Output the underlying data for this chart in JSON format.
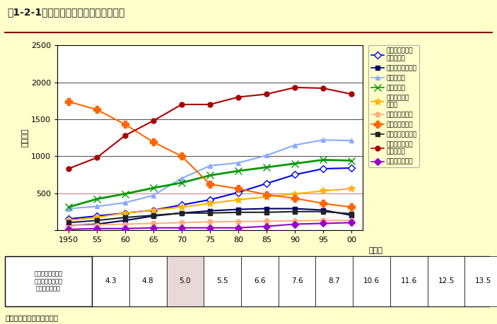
{
  "title": "第1-2-1図　職業分類別就業者数の推移",
  "ylabel": "（万人）",
  "xlabel_suffix": "（年）",
  "background_color": "#FFFFCC",
  "plot_bg_color": "#FFFFFF",
  "years": [
    1950,
    1955,
    1960,
    1965,
    1970,
    1975,
    1980,
    1985,
    1990,
    1995,
    2000
  ],
  "series": [
    {
      "name": "専門的・技術的\n職業従事者",
      "color": "#0000EE",
      "marker": "D",
      "marker_face": "white",
      "linewidth": 1.5,
      "values": [
        150,
        190,
        230,
        270,
        340,
        410,
        510,
        630,
        750,
        830,
        840
      ]
    },
    {
      "name": "管理的職業従事者",
      "color": "#000066",
      "marker": "s",
      "marker_face": "#000066",
      "linewidth": 1.5,
      "values": [
        60,
        80,
        130,
        190,
        230,
        260,
        280,
        290,
        290,
        270,
        200
      ]
    },
    {
      "name": "事務従事者",
      "color": "#88AAFF",
      "marker": "^",
      "marker_face": "#88AAFF",
      "linewidth": 1.5,
      "values": [
        290,
        320,
        370,
        470,
        700,
        870,
        910,
        1010,
        1150,
        1220,
        1210
      ]
    },
    {
      "name": "販売従事者",
      "color": "#009900",
      "marker": "x",
      "marker_face": "#009900",
      "linewidth": 2.0,
      "values": [
        310,
        420,
        490,
        570,
        640,
        740,
        800,
        850,
        900,
        950,
        940
      ]
    },
    {
      "name": "サービス職業\n従事者",
      "color": "#FFB300",
      "marker": "*",
      "marker_face": "#FFB300",
      "linewidth": 1.5,
      "values": [
        130,
        170,
        230,
        270,
        310,
        360,
        410,
        450,
        490,
        530,
        560
      ]
    },
    {
      "name": "保安職業従事者",
      "color": "#FFB080",
      "marker": "o",
      "marker_face": "#FFB080",
      "linewidth": 1.5,
      "values": [
        60,
        70,
        80,
        90,
        100,
        110,
        115,
        120,
        125,
        130,
        130
      ]
    },
    {
      "name": "農林漁業作業者",
      "color": "#FF6600",
      "marker": "P",
      "marker_face": "#FF6600",
      "linewidth": 1.5,
      "values": [
        1740,
        1630,
        1430,
        1190,
        1000,
        620,
        560,
        480,
        430,
        360,
        310
      ]
    },
    {
      "name": "運輸・通信従事者",
      "color": "#222222",
      "marker": "s",
      "marker_face": "#222222",
      "linewidth": 1.5,
      "values": [
        100,
        130,
        170,
        200,
        230,
        230,
        240,
        240,
        250,
        250,
        220
      ]
    },
    {
      "name": "技能工，採掘・\n製造・建設",
      "color": "#AA0000",
      "marker": "o",
      "marker_face": "#AA0000",
      "linewidth": 1.5,
      "values": [
        830,
        980,
        1280,
        1480,
        1700,
        1700,
        1800,
        1840,
        1930,
        1920,
        1840
      ]
    },
    {
      "name": "分類不能の職業",
      "color": "#9900CC",
      "marker": "D",
      "marker_face": "#9900CC",
      "linewidth": 1.5,
      "values": [
        10,
        20,
        20,
        30,
        30,
        30,
        30,
        50,
        80,
        90,
        100
      ]
    }
  ],
  "ylim": [
    0,
    2500
  ],
  "yticks": [
    0,
    500,
    1000,
    1500,
    2000,
    2500
  ],
  "hline_y": 500,
  "hline_color": "#CC9999",
  "table_header": "専門的・技術的職\n業従事者の全従事\n者に占める割合",
  "table_values": [
    "4.3",
    "4.8",
    "5.0",
    "5.5",
    "6.6",
    "7.6",
    "8.7",
    "10.6",
    "11.6",
    "12.5",
    "13.5"
  ],
  "source_text": "資料：総務省「国勢調査」"
}
